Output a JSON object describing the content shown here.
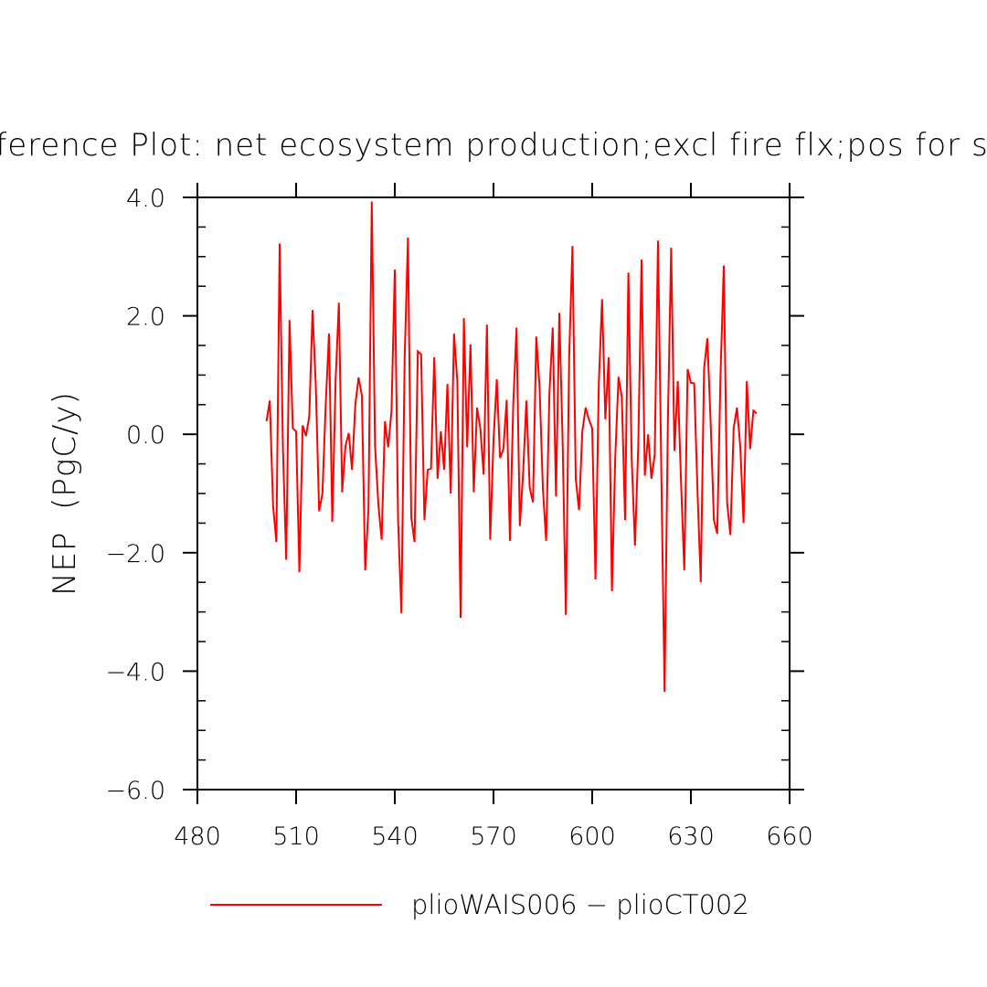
{
  "chart_data": {
    "type": "line",
    "title": "Difference Plot: net ecosystem production;excl fire flx;pos for sink",
    "xlabel": "",
    "ylabel": "NEP  (PgC/y)",
    "xlim": [
      480,
      660
    ],
    "ylim": [
      -6.0,
      4.0
    ],
    "x_ticks": [
      480,
      510,
      540,
      570,
      600,
      630,
      660
    ],
    "x_tick_labels": [
      "480",
      "510",
      "540",
      "570",
      "600",
      "630",
      "660"
    ],
    "y_ticks": [
      4.0,
      2.0,
      0.0,
      -2.0,
      -4.0,
      -6.0
    ],
    "y_tick_labels": [
      "4.0",
      "2.0",
      "0.0",
      "−2.0",
      "−4.0",
      "−6.0"
    ],
    "grid": false,
    "legend_position": "bottom",
    "series": [
      {
        "name": "plioWAIS006 − plioCT002",
        "color": "#ff0000",
        "x_start": 501,
        "x_step": 1,
        "values": [
          0.22,
          0.57,
          -1.2,
          -1.82,
          3.22,
          -0.25,
          -2.12,
          1.93,
          0.1,
          0.05,
          -2.33,
          0.15,
          -0.03,
          0.3,
          2.1,
          0.8,
          -1.3,
          -1.0,
          0.5,
          1.7,
          -1.48,
          0.9,
          2.22,
          -0.98,
          -0.2,
          0.02,
          -0.6,
          0.5,
          0.96,
          0.65,
          -2.3,
          -1.25,
          3.93,
          -0.2,
          -1.18,
          -1.78,
          0.22,
          -0.22,
          0.4,
          2.78,
          -1.45,
          -3.02,
          1.3,
          3.32,
          -1.4,
          -1.82,
          1.4,
          1.35,
          -1.45,
          -0.6,
          -0.58,
          1.3,
          -0.75,
          0.05,
          -0.6,
          0.85,
          -1.0,
          1.7,
          0.9,
          -3.1,
          1.96,
          -0.22,
          1.52,
          -0.98,
          0.45,
          0.1,
          -0.68,
          1.85,
          -1.78,
          -0.1,
          0.93,
          -0.4,
          -0.25,
          0.58,
          -1.8,
          0.5,
          1.8,
          -1.55,
          -0.65,
          0.57,
          -0.9,
          -1.15,
          1.65,
          0.8,
          -0.9,
          -1.8,
          0.7,
          1.8,
          -1.05,
          2.05,
          -0.1,
          -3.05,
          1.3,
          3.18,
          -0.75,
          -1.28,
          0.05,
          0.45,
          0.25,
          0.1,
          -2.45,
          0.85,
          2.28,
          0.25,
          1.3,
          -2.65,
          -0.4,
          0.97,
          0.63,
          -1.45,
          2.73,
          -0.4,
          -1.88,
          -0.2,
          2.95,
          -0.7,
          0.0,
          -0.75,
          -0.35,
          3.27,
          -0.6,
          -4.35,
          0.2,
          3.15,
          -0.28,
          0.9,
          -0.8,
          -2.3,
          1.1,
          0.87,
          0.86,
          -0.95,
          -2.5,
          1.1,
          1.62,
          0.2,
          -1.45,
          -1.68,
          1.0,
          2.85,
          -1.15,
          -1.7,
          0.1,
          0.45,
          -0.2,
          -1.5,
          0.9,
          -0.25,
          0.4,
          0.35
        ]
      }
    ]
  }
}
